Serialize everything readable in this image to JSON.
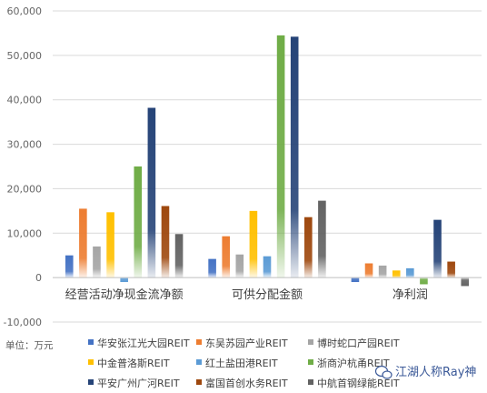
{
  "chart_data": {
    "type": "bar",
    "categories": [
      "经营活动净现金流净额",
      "可供分配金额",
      "净利润"
    ],
    "ylim": [
      -10000,
      60000
    ],
    "yticks": [
      "-10,000",
      "0",
      "10,000",
      "20,000",
      "30,000",
      "40,000",
      "50,000",
      "60,000"
    ],
    "ytick_values": [
      -10000,
      0,
      10000,
      20000,
      30000,
      40000,
      50000,
      60000
    ],
    "grid": true,
    "legend_position": "bottom",
    "unit_label": "单位：万元",
    "series": [
      {
        "name": "华安张江光大园REIT",
        "color": "#4472C4",
        "values": [
          5000,
          4200,
          -1000
        ]
      },
      {
        "name": "东吴苏园产业REIT",
        "color": "#ED7D31",
        "values": [
          15500,
          9300,
          3200
        ]
      },
      {
        "name": "博时蛇口产园REIT",
        "color": "#A5A5A5",
        "values": [
          7000,
          5200,
          2700
        ]
      },
      {
        "name": "中金普洛斯REIT",
        "color": "#FFC000",
        "values": [
          14700,
          15000,
          1600
        ]
      },
      {
        "name": "红土盐田港REIT",
        "color": "#5B9BD5",
        "values": [
          -1000,
          4800,
          2100
        ]
      },
      {
        "name": "浙商沪杭甬REIT",
        "color": "#70AD47",
        "values": [
          25000,
          54500,
          -1500
        ]
      },
      {
        "name": "平安广州广河REIT",
        "color": "#264478",
        "values": [
          38200,
          54200,
          13000
        ]
      },
      {
        "name": "富国首创水务REIT",
        "color": "#9E480E",
        "values": [
          16100,
          13600,
          3600
        ]
      },
      {
        "name": "中航首钢绿能REIT",
        "color": "#636363",
        "values": [
          9800,
          17300,
          -1900
        ]
      }
    ]
  },
  "watermark": {
    "text": "江湖人称Ray神",
    "icon": "wechat-icon"
  }
}
